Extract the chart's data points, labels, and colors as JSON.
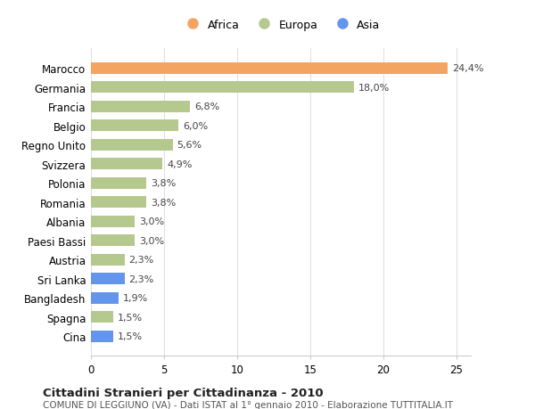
{
  "categories": [
    "Marocco",
    "Germania",
    "Francia",
    "Belgio",
    "Regno Unito",
    "Svizzera",
    "Polonia",
    "Romania",
    "Albania",
    "Paesi Bassi",
    "Austria",
    "Sri Lanka",
    "Bangladesh",
    "Spagna",
    "Cina"
  ],
  "values": [
    24.4,
    18.0,
    6.8,
    6.0,
    5.6,
    4.9,
    3.8,
    3.8,
    3.0,
    3.0,
    2.3,
    2.3,
    1.9,
    1.5,
    1.5
  ],
  "labels": [
    "24,4%",
    "18,0%",
    "6,8%",
    "6,0%",
    "5,6%",
    "4,9%",
    "3,8%",
    "3,8%",
    "3,0%",
    "3,0%",
    "2,3%",
    "2,3%",
    "1,9%",
    "1,5%",
    "1,5%"
  ],
  "continents": [
    "Africa",
    "Europa",
    "Europa",
    "Europa",
    "Europa",
    "Europa",
    "Europa",
    "Europa",
    "Europa",
    "Europa",
    "Europa",
    "Asia",
    "Asia",
    "Europa",
    "Asia"
  ],
  "colors": {
    "Africa": "#F4A460",
    "Europa": "#B5C98E",
    "Asia": "#6495ED"
  },
  "legend": [
    "Africa",
    "Europa",
    "Asia"
  ],
  "legend_colors": [
    "#F4A460",
    "#B5C98E",
    "#6495ED"
  ],
  "title": "Cittadini Stranieri per Cittadinanza - 2010",
  "subtitle": "COMUNE DI LEGGIUNO (VA) - Dati ISTAT al 1° gennaio 2010 - Elaborazione TUTTITALIA.IT",
  "xlim": [
    0,
    26
  ],
  "xticks": [
    0,
    5,
    10,
    15,
    20,
    25
  ],
  "background_color": "#ffffff",
  "grid_color": "#e0e0e0"
}
